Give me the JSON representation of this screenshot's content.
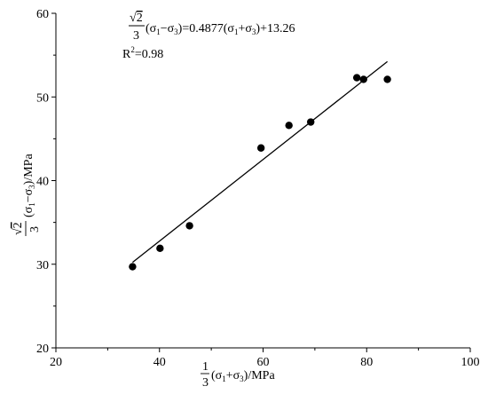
{
  "chart_data": {
    "type": "scatter",
    "x": [
      34.8,
      40.1,
      45.8,
      59.6,
      65.0,
      69.2,
      78.1,
      79.4,
      84.0
    ],
    "y": [
      29.7,
      31.9,
      34.6,
      43.9,
      46.6,
      47.0,
      52.3,
      52.1,
      52.1
    ],
    "fit_line": {
      "x": [
        34.8,
        84.0
      ],
      "y": [
        30.23,
        54.23
      ]
    },
    "xlim": [
      20,
      100
    ],
    "ylim": [
      20,
      60
    ],
    "x_ticks": [
      20,
      40,
      60,
      80,
      100
    ],
    "y_ticks": [
      20,
      30,
      40,
      50,
      60
    ],
    "xlabel": "1/3(σ1+σ3)/MPa",
    "ylabel": "√2/3(σ1−σ3)/MPa",
    "equation": {
      "lhs_num": "√2",
      "lhs_den": "3",
      "lhs_rest": "(σ1−σ3)=0.4877(σ1+σ3)+13.26",
      "r2": "R2=0.98"
    },
    "grid": false,
    "legend": "none",
    "colors": {
      "points": "#000000",
      "line": "#000000",
      "axes": "#000000"
    }
  }
}
